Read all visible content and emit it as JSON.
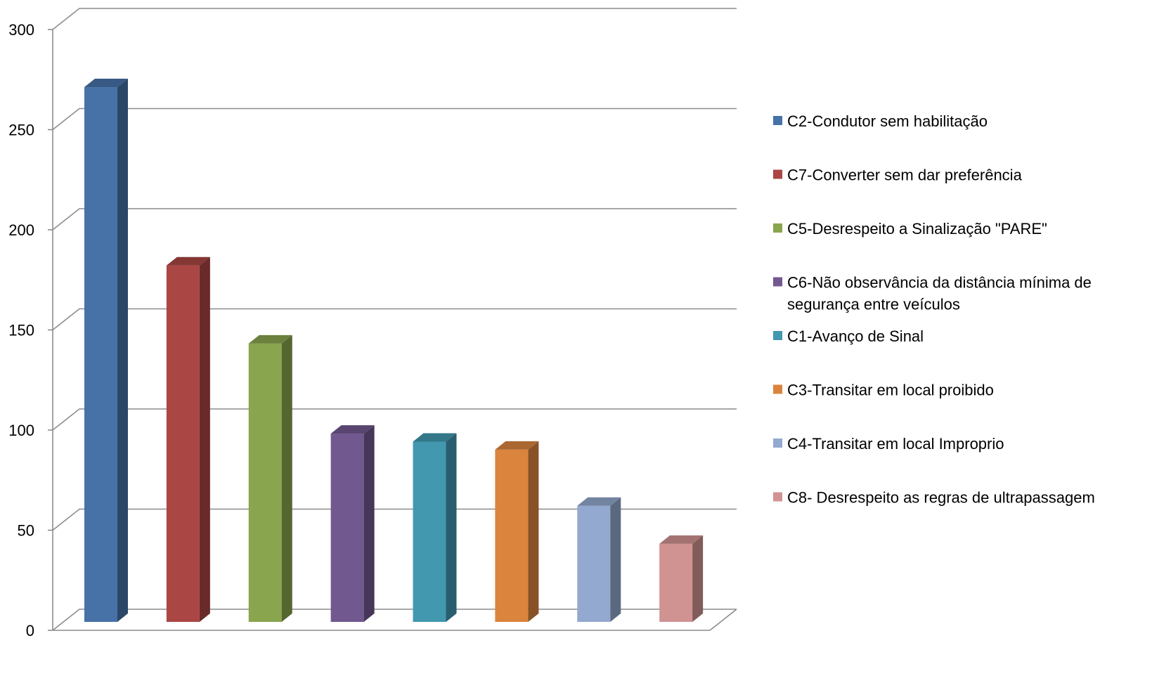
{
  "chart_data": {
    "type": "bar",
    "three_d": true,
    "title": "",
    "xlabel": "",
    "ylabel": "",
    "ylim": [
      0,
      300
    ],
    "y_ticks": [
      0,
      50,
      100,
      150,
      200,
      250,
      300
    ],
    "y_tick_labels": [
      "0",
      "50",
      "100",
      "150",
      "200",
      "250",
      "300"
    ],
    "grid": true,
    "legend_position": "right",
    "categories": [
      "C2-Condutor sem habilitação",
      "C7-Converter sem dar preferência",
      "C5-Desrespeito a Sinalização \"PARE\"",
      "C6-Não observância da distância mínima de segurança entre veículos",
      "C1-Avanço de Sinal",
      "C3-Transitar em local proibido",
      "C4-Transitar em local Improprio",
      "C8- Desrespeito as regras de ultrapassagem"
    ],
    "values": [
      267,
      178,
      139,
      94,
      90,
      86,
      58,
      39
    ],
    "colors": [
      "#4672A8",
      "#AA4643",
      "#89A54E",
      "#71588F",
      "#4198AF",
      "#DB843D",
      "#93A9CF",
      "#D19392"
    ],
    "legend": [
      {
        "lines": [
          "C2-Condutor sem habilitação"
        ]
      },
      {
        "lines": [
          "C7-Converter sem dar preferência"
        ]
      },
      {
        "lines": [
          "C5-Desrespeito a Sinalização \"PARE\""
        ]
      },
      {
        "lines": [
          "C6-Não observância da distância mínima de",
          "segurança entre veículos"
        ]
      },
      {
        "lines": [
          "C1-Avanço de Sinal"
        ]
      },
      {
        "lines": [
          "C3-Transitar em local proibido"
        ]
      },
      {
        "lines": [
          "C4-Transitar em local Improprio"
        ]
      },
      {
        "lines": [
          "C8- Desrespeito as regras de ultrapassagem"
        ]
      }
    ]
  }
}
